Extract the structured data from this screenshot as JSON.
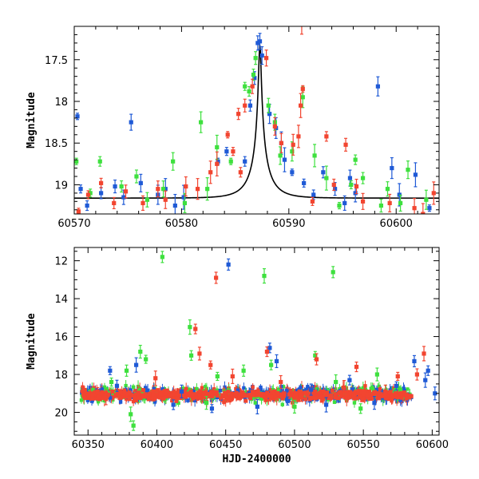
{
  "chart_data": [
    {
      "type": "scatter",
      "xlabel": "",
      "ylabel": "Magnitude",
      "xlim": [
        60570,
        60604
      ],
      "ylim": [
        19.35,
        17.1
      ],
      "y_inverted": true,
      "xticks": [
        60570,
        60580,
        60590,
        60600
      ],
      "yticks": [
        17.5,
        18,
        18.5,
        19
      ],
      "ytick_labels": [
        "17.5",
        "18",
        "18.5",
        "19"
      ],
      "grid": false,
      "model_curve": {
        "color": "#000000",
        "peak_x": 60587.3,
        "peak_mag": 17.31,
        "baseline_mag": 19.16,
        "einstein_timescale_days": 2.0,
        "impact_parameter": 0.055
      },
      "series": [
        {
          "color": "#1f5ad6",
          "points": [
            [
              60570.3,
              18.18
            ],
            [
              60570.6,
              19.05
            ],
            [
              60571.2,
              19.25
            ],
            [
              60572.5,
              19.1
            ],
            [
              60573.8,
              19.02
            ],
            [
              60574.6,
              19.15
            ],
            [
              60575.3,
              18.25
            ],
            [
              60576.2,
              18.98
            ],
            [
              60577.8,
              19.12
            ],
            [
              60578.5,
              19.05
            ],
            [
              60579.4,
              19.25
            ],
            [
              60580.2,
              19.15
            ],
            [
              60583.4,
              18.72
            ],
            [
              60584.2,
              18.6
            ],
            [
              60585.9,
              18.72
            ],
            [
              60586.4,
              18.05
            ],
            [
              60586.8,
              17.72
            ],
            [
              60587.1,
              17.3
            ],
            [
              60587.3,
              17.28
            ],
            [
              60587.5,
              17.45
            ],
            [
              60588.2,
              18.15
            ],
            [
              60588.8,
              18.32
            ],
            [
              60589.3,
              18.5
            ],
            [
              60589.6,
              18.7
            ],
            [
              60590.3,
              18.85
            ],
            [
              60591.4,
              18.98
            ],
            [
              60592.3,
              19.12
            ],
            [
              60593.2,
              18.85
            ],
            [
              60594.3,
              19.05
            ],
            [
              60595.2,
              19.22
            ],
            [
              60595.7,
              18.92
            ],
            [
              60596.2,
              19.1
            ],
            [
              60598.3,
              17.82
            ],
            [
              60599.6,
              18.8
            ],
            [
              60600.3,
              19.12
            ],
            [
              60601.8,
              18.88
            ],
            [
              60603.1,
              19.28
            ]
          ]
        },
        {
          "color": "#3ee03e",
          "points": [
            [
              60570.2,
              18.72
            ],
            [
              60571.5,
              19.1
            ],
            [
              60572.4,
              18.72
            ],
            [
              60574.4,
              19.02
            ],
            [
              60575.8,
              18.9
            ],
            [
              60576.8,
              19.18
            ],
            [
              60578.3,
              19.05
            ],
            [
              60579.2,
              18.72
            ],
            [
              60580.3,
              19.22
            ],
            [
              60581.8,
              18.25
            ],
            [
              60582.4,
              19.05
            ],
            [
              60583.3,
              18.55
            ],
            [
              60584.6,
              18.72
            ],
            [
              60585.9,
              17.82
            ],
            [
              60586.3,
              17.88
            ],
            [
              60586.7,
              17.68
            ],
            [
              60586.9,
              17.48
            ],
            [
              60588.1,
              18.05
            ],
            [
              60588.7,
              18.25
            ],
            [
              60589.2,
              18.65
            ],
            [
              60590.3,
              18.6
            ],
            [
              60591.3,
              17.95
            ],
            [
              60592.4,
              18.65
            ],
            [
              60593.5,
              18.92
            ],
            [
              60594.7,
              19.25
            ],
            [
              60595.8,
              19.0
            ],
            [
              60596.2,
              18.7
            ],
            [
              60596.9,
              18.92
            ],
            [
              60598.6,
              19.25
            ],
            [
              60599.2,
              19.05
            ],
            [
              60600.4,
              19.22
            ],
            [
              60601.1,
              18.82
            ],
            [
              60602.8,
              19.18
            ]
          ]
        },
        {
          "color": "#f24530",
          "points": [
            [
              60570.4,
              19.32
            ],
            [
              60571.3,
              19.12
            ],
            [
              60572.5,
              18.98
            ],
            [
              60573.7,
              19.22
            ],
            [
              60574.8,
              19.08
            ],
            [
              60576.4,
              19.22
            ],
            [
              60577.8,
              19.05
            ],
            [
              60578.5,
              19.18
            ],
            [
              60580.4,
              19.02
            ],
            [
              60581.5,
              19.05
            ],
            [
              60582.7,
              18.85
            ],
            [
              60583.3,
              18.75
            ],
            [
              60584.3,
              18.4
            ],
            [
              60584.8,
              18.6
            ],
            [
              60585.5,
              18.85
            ],
            [
              60585.3,
              18.15
            ],
            [
              60585.9,
              18.05
            ],
            [
              60586.6,
              17.82
            ],
            [
              60587.9,
              17.48
            ],
            [
              60588.7,
              18.3
            ],
            [
              60589.3,
              18.5
            ],
            [
              60590.4,
              18.52
            ],
            [
              60590.9,
              18.42
            ],
            [
              60591.1,
              18.05
            ],
            [
              60591.3,
              17.85
            ],
            [
              60592.2,
              19.2
            ],
            [
              60593.5,
              18.42
            ],
            [
              60594.2,
              19.0
            ],
            [
              60595.3,
              18.52
            ],
            [
              60596.3,
              19.02
            ],
            [
              60596.9,
              19.2
            ],
            [
              60599.4,
              19.22
            ],
            [
              60601.7,
              19.28
            ],
            [
              60602.5,
              19.35
            ],
            [
              60603.5,
              19.1
            ],
            [
              60591.2,
              17.05
            ]
          ]
        }
      ]
    },
    {
      "type": "scatter",
      "xlabel": "HJD-2400000",
      "ylabel": "Magnitude",
      "xlim": [
        60340,
        60605
      ],
      "ylim": [
        21.2,
        11.3
      ],
      "y_inverted": true,
      "xticks": [
        60350,
        60400,
        60450,
        60500,
        60550,
        60600
      ],
      "yticks": [
        12,
        14,
        16,
        18,
        20
      ],
      "grid": false,
      "series": [
        {
          "color": "#1f5ad6",
          "points": [
            [
              60366,
              17.8
            ],
            [
              60371,
              18.6
            ],
            [
              60385,
              17.5
            ],
            [
              60412,
              19.6
            ],
            [
              60418,
              18.9
            ],
            [
              60440,
              19.8
            ],
            [
              60452,
              12.2
            ],
            [
              60473,
              19.7
            ],
            [
              60482,
              16.6
            ],
            [
              60487,
              17.3
            ],
            [
              60495,
              19.4
            ],
            [
              60512,
              18.8
            ],
            [
              60523,
              19.6
            ],
            [
              60540,
              18.3
            ],
            [
              60558,
              19.5
            ],
            [
              60574,
              18.6
            ],
            [
              60587,
              17.3
            ],
            [
              60595,
              18.3
            ],
            [
              60597,
              17.8
            ],
            [
              60602,
              19.0
            ]
          ]
        },
        {
          "color": "#3ee03e",
          "points": [
            [
              60367,
              18.4
            ],
            [
              60378,
              17.8
            ],
            [
              60381,
              20.1
            ],
            [
              60383,
              20.7
            ],
            [
              60388,
              16.8
            ],
            [
              60392,
              17.2
            ],
            [
              60404,
              11.8
            ],
            [
              60424,
              15.5
            ],
            [
              60425,
              17.0
            ],
            [
              60436,
              19.5
            ],
            [
              60444,
              18.1
            ],
            [
              60463,
              17.8
            ],
            [
              60478,
              12.8
            ],
            [
              60483,
              17.5
            ],
            [
              60500,
              19.7
            ],
            [
              60515,
              17.0
            ],
            [
              60528,
              12.6
            ],
            [
              60530,
              18.4
            ],
            [
              60548,
              19.8
            ],
            [
              60560,
              18.0
            ]
          ]
        },
        {
          "color": "#f24530",
          "points": [
            [
              60357,
              18.9
            ],
            [
              60363,
              19.3
            ],
            [
              60399,
              18.2
            ],
            [
              60428,
              15.6
            ],
            [
              60431,
              16.9
            ],
            [
              60439,
              17.5
            ],
            [
              60443,
              12.9
            ],
            [
              60455,
              18.1
            ],
            [
              60480,
              16.8
            ],
            [
              60490,
              18.4
            ],
            [
              60505,
              19.2
            ],
            [
              60516,
              17.2
            ],
            [
              60536,
              18.7
            ],
            [
              60545,
              17.6
            ],
            [
              60566,
              18.9
            ],
            [
              60575,
              18.1
            ],
            [
              60589,
              18.0
            ],
            [
              60594,
              16.9
            ]
          ]
        }
      ]
    }
  ]
}
